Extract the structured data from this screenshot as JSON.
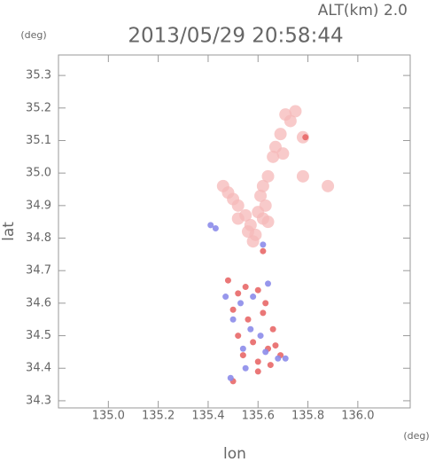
{
  "chart_data": {
    "type": "scatter",
    "title": "2013/05/29 20:58:44",
    "annotation": "ALT(km) 2.0",
    "x_label": "lon",
    "y_label": "lat",
    "x_unit": "(deg)",
    "y_unit": "(deg)",
    "xlim": [
      134.8,
      136.21
    ],
    "ylim": [
      34.278,
      35.363
    ],
    "xticks": [
      {
        "value": 135,
        "label": "135.0"
      },
      {
        "value": 135.2,
        "label": "135.2"
      },
      {
        "value": 135.4,
        "label": "135.4"
      },
      {
        "value": 135.6,
        "label": "135.6"
      },
      {
        "value": 135.8,
        "label": "135.8"
      },
      {
        "value": 136,
        "label": "136.0"
      }
    ],
    "yticks": [
      34.3,
      34.4,
      34.5,
      34.6,
      34.7,
      34.8,
      34.9,
      {
        "value": 35,
        "label": "35.0"
      },
      35.1,
      35.2,
      35.3
    ],
    "series": [
      {
        "color": "#f6b8b8",
        "x": [
          135.71,
          135.73,
          135.69,
          135.67,
          135.7,
          135.66,
          135.64,
          135.62,
          135.61,
          135.63,
          135.46,
          135.48,
          135.5,
          135.52,
          135.55,
          135.57,
          135.59,
          135.6,
          135.62,
          135.64,
          135.88,
          135.78,
          135.56,
          135.58,
          135.52,
          135.78,
          135.75
        ],
        "y": [
          35.18,
          35.16,
          35.12,
          35.08,
          35.06,
          35.05,
          34.99,
          34.96,
          34.93,
          34.9,
          34.96,
          34.94,
          34.92,
          34.9,
          34.87,
          34.84,
          34.81,
          34.88,
          34.86,
          34.85,
          34.96,
          34.99,
          34.82,
          34.79,
          34.86,
          35.11,
          35.19
        ]
      },
      {
        "color": "#e86868",
        "x": [
          135.48,
          135.52,
          135.55,
          135.6,
          135.63,
          135.5,
          135.56,
          135.62,
          135.66,
          135.52,
          135.58,
          135.64,
          135.54,
          135.6,
          135.67,
          135.69,
          135.65,
          135.5,
          135.62,
          135.79,
          135.6
        ],
        "y": [
          34.67,
          34.63,
          34.65,
          34.64,
          34.6,
          34.58,
          34.55,
          34.57,
          34.52,
          34.5,
          34.48,
          34.46,
          34.44,
          34.42,
          34.47,
          34.44,
          34.41,
          34.36,
          34.76,
          35.11,
          34.39
        ]
      },
      {
        "color": "#8c8cea",
        "x": [
          135.47,
          135.53,
          135.58,
          135.64,
          135.5,
          135.57,
          135.61,
          135.54,
          135.63,
          135.55,
          135.68,
          135.71,
          135.49,
          135.62,
          135.41,
          135.43
        ],
        "y": [
          34.62,
          34.6,
          34.62,
          34.66,
          34.55,
          34.52,
          34.5,
          34.46,
          34.45,
          34.4,
          34.43,
          34.43,
          34.37,
          34.78,
          34.84,
          34.83
        ]
      }
    ]
  }
}
